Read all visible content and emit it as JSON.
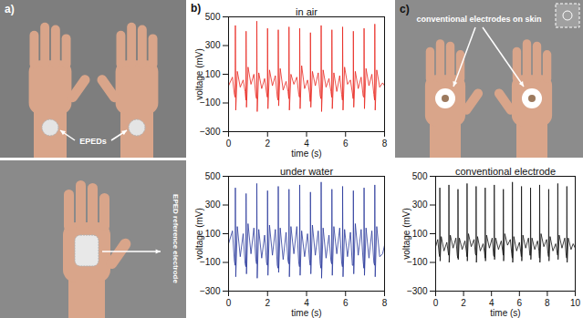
{
  "figure": {
    "panel_labels": [
      "a)",
      "b)",
      "c)"
    ],
    "photo_a_top_label": "EPEDs",
    "photo_a_bottom_label": "EPED reference electrode",
    "photo_c_label": "conventional electrodes on skin"
  },
  "chart_data": [
    {
      "type": "line",
      "title": "in air",
      "x_label": "time (s)",
      "y_label": "voltage (mV)",
      "color": "#e8261e",
      "xlim": [
        0,
        8
      ],
      "xticks": [
        0,
        2,
        4,
        6,
        8
      ],
      "ylim": [
        -300,
        500
      ],
      "yticks": [
        -300,
        -100,
        100,
        300,
        500
      ],
      "x": [
        0,
        0.2,
        0.3,
        0.34,
        0.35,
        0.37,
        0.45,
        0.6,
        0.75,
        0.85,
        0.89,
        0.9,
        0.92,
        1.0,
        1.15,
        1.3,
        1.4,
        1.44,
        1.45,
        1.47,
        1.55,
        1.7,
        1.85,
        1.95,
        1.99,
        2.0,
        2.02,
        2.1,
        2.25,
        2.4,
        2.5,
        2.54,
        2.55,
        2.57,
        2.65,
        2.8,
        2.95,
        3.05,
        3.09,
        3.1,
        3.12,
        3.2,
        3.35,
        3.5,
        3.6,
        3.64,
        3.65,
        3.67,
        3.75,
        3.9,
        4.05,
        4.15,
        4.19,
        4.2,
        4.22,
        4.3,
        4.45,
        4.6,
        4.7,
        4.74,
        4.75,
        4.77,
        4.85,
        5.0,
        5.15,
        5.25,
        5.29,
        5.3,
        5.32,
        5.4,
        5.55,
        5.7,
        5.8,
        5.84,
        5.85,
        5.87,
        5.95,
        6.1,
        6.25,
        6.35,
        6.39,
        6.4,
        6.42,
        6.5,
        6.65,
        6.8,
        6.9,
        6.94,
        6.95,
        6.97,
        7.05,
        7.2,
        7.35,
        7.45,
        7.49,
        7.5,
        7.52,
        7.6,
        7.75,
        7.9,
        8.0
      ],
      "values": [
        20,
        80,
        -40,
        -60,
        440,
        -150,
        120,
        10,
        60,
        -20,
        -80,
        400,
        -130,
        150,
        30,
        100,
        -50,
        -70,
        470,
        -160,
        110,
        0,
        70,
        -30,
        -60,
        420,
        -140,
        130,
        20,
        90,
        -60,
        -80,
        410,
        -120,
        140,
        -10,
        50,
        -20,
        -70,
        430,
        -150,
        100,
        30,
        80,
        -40,
        -60,
        420,
        -140,
        160,
        0,
        60,
        -30,
        -90,
        390,
        -130,
        120,
        20,
        110,
        -50,
        -70,
        440,
        -160,
        130,
        10,
        70,
        -20,
        -60,
        410,
        -140,
        110,
        -20,
        90,
        -40,
        -80,
        430,
        -150,
        150,
        30,
        60,
        -30,
        -70,
        400,
        -130,
        120,
        0,
        80,
        -50,
        -60,
        420,
        -140,
        140,
        20,
        100,
        -40,
        -80,
        450,
        -150,
        130,
        10,
        40,
        20
      ]
    },
    {
      "type": "line",
      "title": "under water",
      "x_label": "time (s)",
      "y_label": "voltage (mV)",
      "color": "#2b3a9c",
      "xlim": [
        0,
        8
      ],
      "xticks": [
        0,
        2,
        4,
        6,
        8
      ],
      "ylim": [
        -300,
        500
      ],
      "yticks": [
        -300,
        -100,
        100,
        300,
        500
      ],
      "x": [
        0,
        0.2,
        0.3,
        0.34,
        0.35,
        0.37,
        0.45,
        0.6,
        0.75,
        0.85,
        0.89,
        0.9,
        0.92,
        1.0,
        1.15,
        1.3,
        1.4,
        1.44,
        1.45,
        1.47,
        1.55,
        1.7,
        1.85,
        1.95,
        1.99,
        2.0,
        2.02,
        2.1,
        2.25,
        2.4,
        2.5,
        2.54,
        2.55,
        2.57,
        2.65,
        2.8,
        2.95,
        3.05,
        3.09,
        3.1,
        3.12,
        3.2,
        3.35,
        3.5,
        3.6,
        3.64,
        3.65,
        3.67,
        3.75,
        3.9,
        4.05,
        4.15,
        4.19,
        4.2,
        4.22,
        4.3,
        4.45,
        4.6,
        4.7,
        4.74,
        4.75,
        4.77,
        4.85,
        5.0,
        5.15,
        5.25,
        5.29,
        5.3,
        5.32,
        5.4,
        5.55,
        5.7,
        5.8,
        5.84,
        5.85,
        5.87,
        5.95,
        6.1,
        6.25,
        6.35,
        6.39,
        6.4,
        6.42,
        6.5,
        6.65,
        6.8,
        6.9,
        6.94,
        6.95,
        6.97,
        7.05,
        7.2,
        7.35,
        7.45,
        7.49,
        7.5,
        7.52,
        7.6,
        7.75,
        7.9,
        8.0
      ],
      "values": [
        30,
        120,
        -90,
        -120,
        420,
        -200,
        150,
        -60,
        100,
        -110,
        -130,
        380,
        -180,
        170,
        -40,
        140,
        -80,
        -110,
        450,
        -210,
        130,
        -70,
        90,
        -100,
        -120,
        400,
        -190,
        160,
        -50,
        130,
        -120,
        -140,
        430,
        -170,
        140,
        -80,
        110,
        -90,
        -110,
        410,
        -200,
        150,
        -40,
        150,
        -100,
        -130,
        440,
        -190,
        120,
        -60,
        100,
        -80,
        -120,
        390,
        -180,
        160,
        -50,
        120,
        -110,
        -140,
        460,
        -210,
        140,
        -70,
        90,
        -90,
        -110,
        410,
        -190,
        150,
        -40,
        140,
        -100,
        -130,
        430,
        -200,
        130,
        -60,
        110,
        -120,
        -120,
        400,
        -180,
        170,
        -50,
        130,
        -90,
        -140,
        420,
        -190,
        140,
        -70,
        120,
        -100,
        -120,
        440,
        -200,
        150,
        -60,
        -40,
        20
      ]
    },
    {
      "type": "line",
      "title": "conventional electrode",
      "x_label": "time (s)",
      "y_label": "voltage (mV)",
      "color": "#111111",
      "xlim": [
        0,
        10
      ],
      "xticks": [
        0,
        2,
        4,
        6,
        8,
        10
      ],
      "ylim": [
        -300,
        500
      ],
      "yticks": [
        -300,
        -100,
        100,
        300,
        500
      ],
      "x": [
        0,
        0.15,
        0.25,
        0.29,
        0.3,
        0.32,
        0.4,
        0.6,
        0.8,
        0.9,
        0.94,
        0.95,
        0.97,
        1.05,
        1.25,
        1.45,
        1.55,
        1.59,
        1.6,
        1.62,
        1.7,
        1.9,
        2.1,
        2.2,
        2.24,
        2.25,
        2.27,
        2.35,
        2.55,
        2.75,
        2.85,
        2.89,
        2.9,
        2.92,
        3.0,
        3.2,
        3.4,
        3.5,
        3.54,
        3.55,
        3.57,
        3.65,
        3.85,
        4.05,
        4.15,
        4.19,
        4.2,
        4.22,
        4.3,
        4.5,
        4.7,
        4.8,
        4.84,
        4.85,
        4.87,
        4.95,
        5.15,
        5.35,
        5.45,
        5.49,
        5.5,
        5.52,
        5.6,
        5.8,
        6.0,
        6.1,
        6.14,
        6.15,
        6.17,
        6.25,
        6.45,
        6.65,
        6.75,
        6.79,
        6.8,
        6.82,
        6.9,
        7.1,
        7.3,
        7.4,
        7.44,
        7.45,
        7.47,
        7.55,
        7.75,
        7.95,
        8.05,
        8.09,
        8.1,
        8.12,
        8.2,
        8.4,
        8.6,
        8.7,
        8.74,
        8.75,
        8.77,
        8.85,
        9.05,
        9.25,
        9.35,
        9.39,
        9.4,
        9.42,
        9.5,
        9.7,
        9.85,
        10.0
      ],
      "values": [
        10,
        60,
        -40,
        -60,
        420,
        -90,
        80,
        -20,
        40,
        -30,
        -50,
        440,
        -100,
        90,
        0,
        70,
        -50,
        -70,
        410,
        -80,
        70,
        -10,
        50,
        -20,
        -60,
        450,
        -90,
        100,
        10,
        60,
        -40,
        -50,
        430,
        -100,
        80,
        -20,
        30,
        -30,
        -70,
        420,
        -90,
        90,
        0,
        70,
        -50,
        -60,
        440,
        -80,
        70,
        -10,
        50,
        -20,
        -50,
        410,
        -90,
        100,
        20,
        60,
        -40,
        -70,
        460,
        -100,
        80,
        -20,
        40,
        -30,
        -60,
        430,
        -90,
        90,
        0,
        70,
        -50,
        -50,
        420,
        -80,
        70,
        -10,
        50,
        -20,
        -70,
        440,
        -100,
        100,
        10,
        60,
        -40,
        -60,
        410,
        -90,
        80,
        -20,
        30,
        -30,
        -50,
        450,
        -80,
        90,
        0,
        70,
        -50,
        -70,
        430,
        -100,
        70,
        -10,
        30,
        0
      ]
    }
  ]
}
